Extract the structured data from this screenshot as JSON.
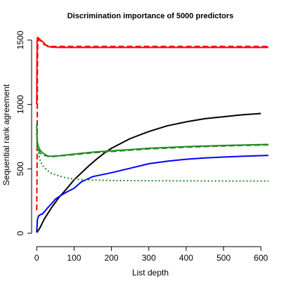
{
  "chart_data": {
    "type": "line",
    "title": "Discrimination importance of 5000 predictors",
    "xlabel": "List depth",
    "ylabel": "Sequential rank agreement",
    "xlim": [
      -8,
      622
    ],
    "ylim": [
      -60,
      1560
    ],
    "xticks": [
      0,
      100,
      200,
      300,
      400,
      500,
      600
    ],
    "yticks": [
      0,
      500,
      1000,
      1500
    ],
    "grid": false,
    "series": [
      {
        "color": "#ff0000",
        "dash": "solid",
        "x": [
          0,
          1,
          2,
          5,
          10,
          15,
          20,
          25,
          30,
          40,
          60,
          100,
          200,
          300,
          400,
          500,
          620
        ],
        "y": [
          1000,
          1490,
          1520,
          1515,
          1500,
          1490,
          1475,
          1460,
          1450,
          1445,
          1443,
          1443,
          1443,
          1443,
          1443,
          1443,
          1443
        ]
      },
      {
        "color": "#ff0000",
        "dash": "dashed",
        "x": [
          0,
          1,
          2,
          3,
          5,
          8,
          10,
          15,
          20,
          30,
          40,
          60,
          100,
          200,
          300,
          400,
          500,
          620
        ],
        "y": [
          180,
          500,
          1300,
          1480,
          1505,
          1500,
          1495,
          1480,
          1465,
          1455,
          1450,
          1450,
          1450,
          1450,
          1450,
          1450,
          1450,
          1450
        ]
      },
      {
        "color": "#000000",
        "dash": "solid",
        "x": [
          0,
          5,
          10,
          20,
          30,
          40,
          50,
          60,
          80,
          100,
          120,
          140,
          160,
          180,
          200,
          250,
          300,
          350,
          400,
          450,
          500,
          550,
          600
        ],
        "y": [
          5,
          25,
          50,
          110,
          155,
          200,
          240,
          280,
          345,
          415,
          470,
          525,
          575,
          620,
          660,
          735,
          790,
          835,
          865,
          890,
          905,
          920,
          930
        ]
      },
      {
        "color": "#0000ff",
        "dash": "solid",
        "x": [
          0,
          2,
          5,
          10,
          15,
          20,
          30,
          40,
          50,
          60,
          80,
          100,
          120,
          150,
          200,
          250,
          300,
          350,
          400,
          450,
          500,
          550,
          620
        ],
        "y": [
          10,
          110,
          135,
          145,
          150,
          165,
          200,
          230,
          265,
          285,
          320,
          350,
          400,
          440,
          470,
          505,
          540,
          560,
          575,
          585,
          592,
          598,
          605
        ]
      },
      {
        "color": "#228b22",
        "dash": "solid",
        "x": [
          0,
          1,
          3,
          5,
          10,
          20,
          30,
          40,
          60,
          100,
          150,
          200,
          250,
          300,
          400,
          500,
          620
        ],
        "y": [
          850,
          720,
          690,
          670,
          640,
          615,
          600,
          598,
          602,
          615,
          630,
          640,
          650,
          660,
          673,
          682,
          690
        ]
      },
      {
        "color": "#228b22",
        "dash": "dashed",
        "x": [
          0,
          1,
          3,
          5,
          10,
          20,
          30,
          40,
          60,
          100,
          150,
          200,
          250,
          300,
          400,
          500,
          620
        ],
        "y": [
          780,
          700,
          660,
          645,
          620,
          605,
          598,
          595,
          600,
          610,
          625,
          635,
          645,
          655,
          668,
          678,
          686
        ]
      },
      {
        "color": "#228b22",
        "dash": "dotted",
        "x": [
          0,
          1,
          2,
          3,
          5,
          8,
          10,
          15,
          20,
          30,
          40,
          60,
          80,
          100,
          150,
          200,
          300,
          400,
          500,
          620
        ],
        "y": [
          650,
          720,
          700,
          660,
          620,
          580,
          560,
          530,
          510,
          485,
          465,
          445,
          430,
          420,
          413,
          410,
          408,
          407,
          406,
          406
        ]
      }
    ]
  }
}
